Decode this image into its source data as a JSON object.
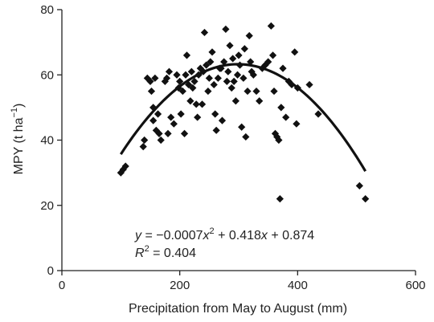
{
  "chart_data": {
    "type": "scatter",
    "xlabel": "Precipitation from May to August (mm)",
    "ylabel": "MPY (t ha",
    "ylabel_sup": "−1",
    "ylabel_tail": ")",
    "xlim": [
      0,
      600
    ],
    "ylim": [
      0,
      80
    ],
    "xticks": [
      "0",
      "200",
      "400",
      "600"
    ],
    "yticks": [
      "0",
      "20",
      "40",
      "60",
      "80"
    ],
    "grid": false,
    "legend": "none",
    "point_color": "#111111",
    "marker": "diamond",
    "fit": {
      "equation_parts": [
        "y",
        " = −0.0007",
        "x",
        "2",
        " + 0.418",
        "x",
        " + 0.874"
      ],
      "r2_parts": [
        "R",
        "2",
        " = 0.404"
      ],
      "coefficients": {
        "a": -0.0007,
        "b": 0.418,
        "c": 0.874
      },
      "x_range": [
        100,
        515
      ],
      "line_color": "#111111"
    },
    "points": [
      [
        100,
        30
      ],
      [
        104,
        31
      ],
      [
        108,
        32
      ],
      [
        138,
        38
      ],
      [
        140,
        40
      ],
      [
        145,
        59
      ],
      [
        150,
        58
      ],
      [
        152,
        55
      ],
      [
        155,
        50
      ],
      [
        155,
        46
      ],
      [
        158,
        59
      ],
      [
        160,
        43
      ],
      [
        163,
        48
      ],
      [
        165,
        42
      ],
      [
        168,
        40
      ],
      [
        175,
        58
      ],
      [
        178,
        59
      ],
      [
        180,
        42
      ],
      [
        182,
        61
      ],
      [
        185,
        47
      ],
      [
        190,
        45
      ],
      [
        195,
        60
      ],
      [
        198,
        56
      ],
      [
        200,
        58
      ],
      [
        202,
        48
      ],
      [
        205,
        55
      ],
      [
        208,
        42
      ],
      [
        210,
        60
      ],
      [
        212,
        66
      ],
      [
        215,
        57
      ],
      [
        218,
        52
      ],
      [
        220,
        61
      ],
      [
        222,
        56
      ],
      [
        225,
        58
      ],
      [
        228,
        51
      ],
      [
        230,
        47
      ],
      [
        232,
        60
      ],
      [
        235,
        62
      ],
      [
        238,
        51
      ],
      [
        240,
        61
      ],
      [
        242,
        73
      ],
      [
        245,
        63
      ],
      [
        248,
        55
      ],
      [
        250,
        59
      ],
      [
        252,
        64
      ],
      [
        255,
        67
      ],
      [
        258,
        57
      ],
      [
        260,
        48
      ],
      [
        262,
        43
      ],
      [
        265,
        59
      ],
      [
        268,
        62
      ],
      [
        270,
        62
      ],
      [
        272,
        46
      ],
      [
        275,
        64
      ],
      [
        278,
        74
      ],
      [
        280,
        58
      ],
      [
        282,
        61
      ],
      [
        285,
        69
      ],
      [
        288,
        56
      ],
      [
        290,
        65
      ],
      [
        292,
        58
      ],
      [
        295,
        52
      ],
      [
        298,
        60
      ],
      [
        300,
        66
      ],
      [
        302,
        63
      ],
      [
        305,
        44
      ],
      [
        308,
        59
      ],
      [
        310,
        68
      ],
      [
        312,
        41
      ],
      [
        315,
        55
      ],
      [
        318,
        72
      ],
      [
        320,
        64
      ],
      [
        322,
        61
      ],
      [
        325,
        60
      ],
      [
        330,
        55
      ],
      [
        335,
        52
      ],
      [
        340,
        62
      ],
      [
        345,
        63
      ],
      [
        350,
        64
      ],
      [
        355,
        75
      ],
      [
        358,
        66
      ],
      [
        360,
        55
      ],
      [
        362,
        42
      ],
      [
        365,
        41
      ],
      [
        368,
        40
      ],
      [
        370,
        22
      ],
      [
        372,
        50
      ],
      [
        375,
        62
      ],
      [
        380,
        47
      ],
      [
        385,
        58
      ],
      [
        390,
        57
      ],
      [
        395,
        67
      ],
      [
        398,
        45
      ],
      [
        400,
        56
      ],
      [
        420,
        57
      ],
      [
        435,
        48
      ],
      [
        505,
        26
      ],
      [
        515,
        22
      ]
    ]
  }
}
